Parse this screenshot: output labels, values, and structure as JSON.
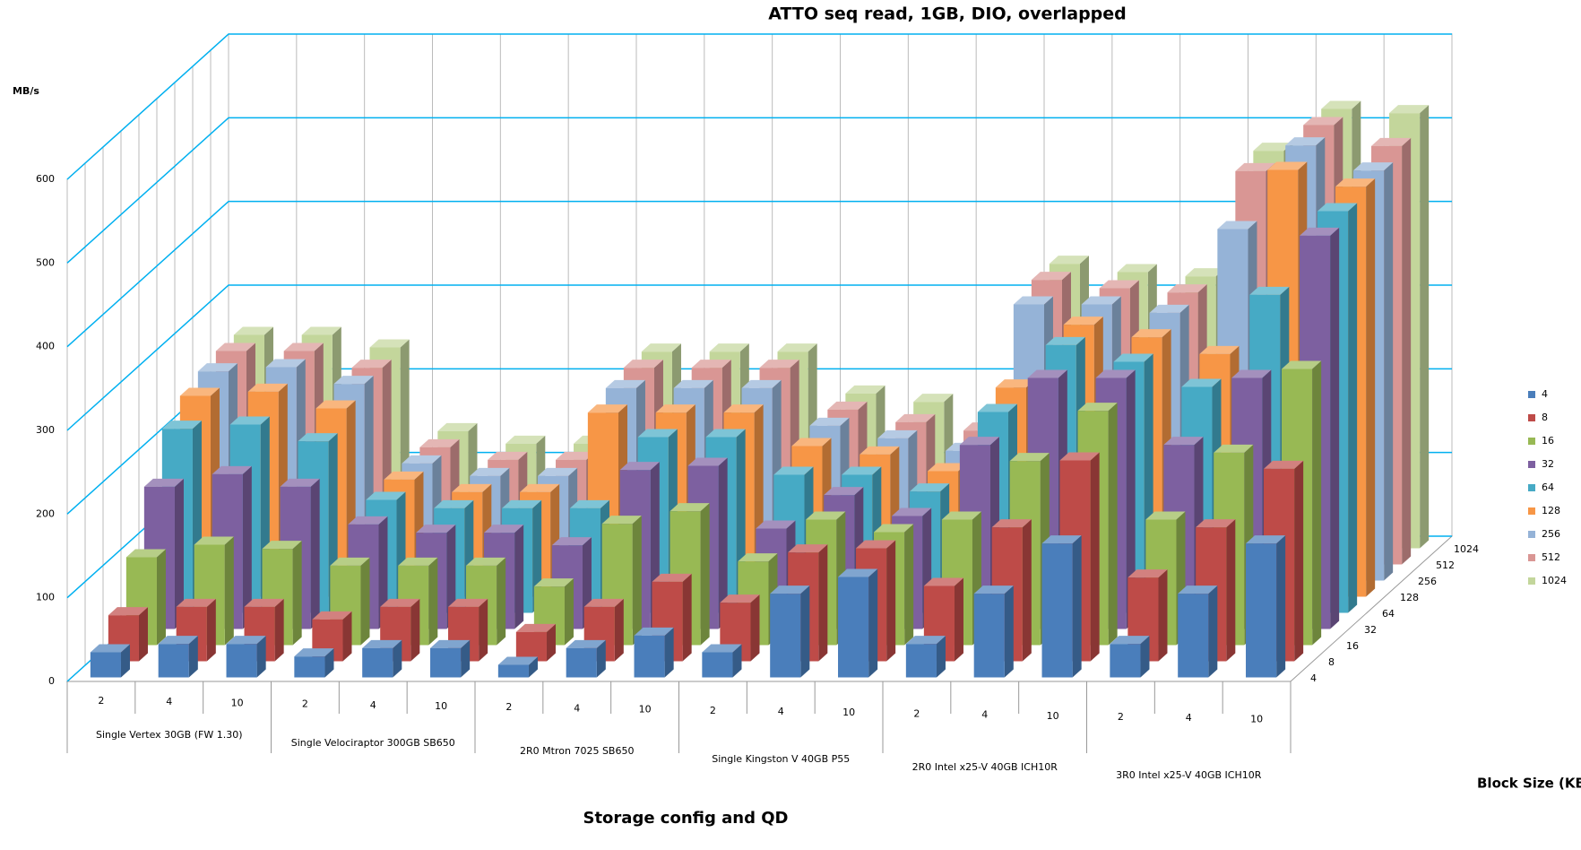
{
  "chart_data": {
    "type": "bar3d",
    "title": "ATTO seq read, 1GB, DIO, overlapped",
    "y_label": "MB/s",
    "x_label": "Storage config and QD",
    "z_label": "Block Size (KB)",
    "groups": [
      "Single Vertex 30GB (FW 1.30)",
      "Single Velociraptor 300GB SB650",
      "2R0 Mtron 7025 SB650",
      "Single Kingston V 40GB P55",
      "2R0 Intel x25-V 40GB ICH10R",
      "3R0 Intel x25-V 40GB ICH10R"
    ],
    "categories": [
      "2",
      "4",
      "10",
      "2",
      "4",
      "10",
      "2",
      "4",
      "10",
      "2",
      "4",
      "10",
      "2",
      "4",
      "10",
      "2",
      "4",
      "10"
    ],
    "series": [
      {
        "name": "4",
        "color": "#4a7ebb",
        "values": [
          30,
          40,
          40,
          25,
          35,
          35,
          15,
          35,
          50,
          30,
          100,
          120,
          40,
          100,
          160,
          40,
          100,
          160
        ]
      },
      {
        "name": "8",
        "color": "#be4b48",
        "values": [
          55,
          65,
          65,
          50,
          65,
          65,
          35,
          65,
          95,
          70,
          130,
          135,
          90,
          160,
          240,
          100,
          160,
          230
        ]
      },
      {
        "name": "16",
        "color": "#98b954",
        "values": [
          105,
          120,
          115,
          95,
          95,
          95,
          70,
          145,
          160,
          100,
          150,
          135,
          150,
          220,
          280,
          150,
          230,
          330
        ]
      },
      {
        "name": "32",
        "color": "#7d60a0",
        "values": [
          170,
          185,
          170,
          125,
          115,
          115,
          100,
          190,
          195,
          120,
          160,
          135,
          220,
          300,
          300,
          220,
          300,
          470
        ]
      },
      {
        "name": "64",
        "color": "#46aac5",
        "values": [
          220,
          225,
          205,
          135,
          125,
          125,
          125,
          210,
          210,
          165,
          165,
          145,
          240,
          320,
          300,
          270,
          380,
          480
        ]
      },
      {
        "name": "128",
        "color": "#f79646",
        "values": [
          240,
          245,
          225,
          140,
          125,
          125,
          220,
          220,
          220,
          180,
          170,
          150,
          250,
          325,
          310,
          290,
          510,
          490
        ]
      },
      {
        "name": "256",
        "color": "#95b3d7",
        "values": [
          250,
          255,
          235,
          140,
          125,
          125,
          230,
          230,
          230,
          185,
          170,
          155,
          330,
          330,
          320,
          420,
          520,
          490
        ]
      },
      {
        "name": "512",
        "color": "#d99694",
        "values": [
          255,
          255,
          235,
          140,
          125,
          125,
          235,
          235,
          235,
          185,
          170,
          160,
          340,
          330,
          325,
          470,
          525,
          500
        ]
      },
      {
        "name": "1024",
        "color": "#c3d69b",
        "values": [
          255,
          255,
          240,
          140,
          125,
          125,
          235,
          235,
          235,
          185,
          175,
          160,
          340,
          330,
          325,
          475,
          525,
          520
        ]
      }
    ],
    "ylim": [
      0,
      600
    ],
    "yticks": [
      0,
      100,
      200,
      300,
      400,
      500,
      600
    ],
    "grid": true
  }
}
